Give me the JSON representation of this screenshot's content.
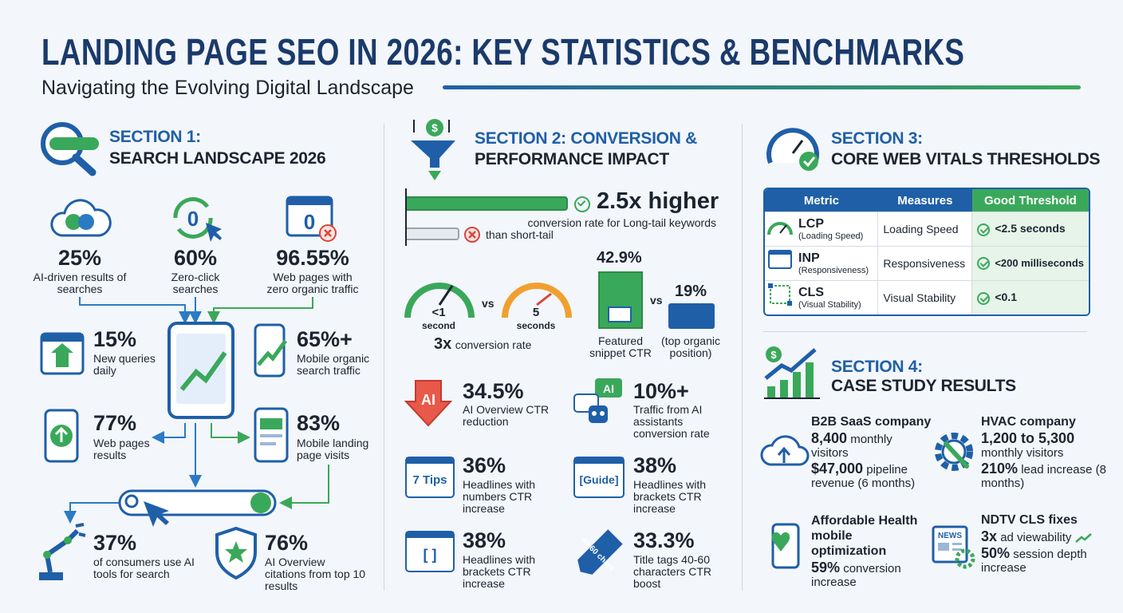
{
  "header": {
    "title": "LANDING PAGE SEO IN 2026: KEY STATISTICS & BENCHMARKS",
    "subtitle": "Navigating the Evolving Digital Landscape"
  },
  "section1": {
    "heading": "SECTION 1:",
    "title": "SEARCH LANDSCAPE 2026",
    "stats": [
      {
        "value": "25%",
        "label": "AI-driven results of searches"
      },
      {
        "value": "60%",
        "label": "Zero-click searches",
        "icon": "0"
      },
      {
        "value": "96.55%",
        "label": "Web pages with zero organic traffic",
        "icon": "0"
      },
      {
        "value": "15%",
        "label": "New queries daily"
      },
      {
        "value": "65%+",
        "label": "Mobile organic search traffic"
      },
      {
        "value": "77%",
        "label": "Web pages results"
      },
      {
        "value": "83%",
        "label": "Mobile landing page visits"
      },
      {
        "value": "37%",
        "label": "of consumers use AI tools for search"
      },
      {
        "value": "76%",
        "label": "AI Overview citations from top 10 results"
      }
    ]
  },
  "section2": {
    "heading": "SECTION 2: CONVERSION &",
    "title": "PERFORMANCE IMPACT",
    "icon": "$",
    "longtail": {
      "value": "2.5x higher",
      "text": "conversion rate for Long-tail keywords",
      "compare": "than short-tail"
    },
    "speed": {
      "fast": "<1",
      "fast_unit": "second",
      "vs": "vs",
      "slow": "5",
      "slow_unit": "seconds",
      "result_value": "3x",
      "result": "conversion rate"
    },
    "snippet": {
      "value1": "42.9%",
      "label1": "Featured snippet CTR",
      "vs": "vs",
      "value2": "19%",
      "label2": "(top organic position)"
    },
    "stats": [
      {
        "value": "34.5%",
        "label": "AI Overview CTR reduction",
        "icon": "AI"
      },
      {
        "value": "10%+",
        "label": "Traffic from AI assistants conversion rate",
        "icon": "AI"
      },
      {
        "value": "36%",
        "label": "Headlines with numbers CTR increase",
        "icon": "7 Tips"
      },
      {
        "value": "38%",
        "label": "Headlines with brackets CTR increase",
        "icon": "[Guide]"
      },
      {
        "value": "38%",
        "label": "Headlines with brackets CTR increase",
        "icon": "[ ]"
      },
      {
        "value": "33.3%",
        "label": "Title tags 40-60 characters CTR boost",
        "icon": "40-60 chars"
      }
    ]
  },
  "section3": {
    "heading": "SECTION 3:",
    "title": "CORE WEB VITALS THRESHOLDS",
    "table": {
      "header": [
        "Metric",
        "Measures",
        "Good Threshold"
      ],
      "rows": [
        {
          "metric": "LCP",
          "detail": "(Loading Speed)",
          "measures": "Loading Speed",
          "threshold": "<2.5 seconds"
        },
        {
          "metric": "INP",
          "detail": "(Responsiveness)",
          "measures": "Responsiveness",
          "threshold": "<200 milliseconds"
        },
        {
          "metric": "CLS",
          "detail": "(Visual Stability)",
          "measures": "Visual Stability",
          "threshold": "<0.1"
        }
      ]
    }
  },
  "section4": {
    "heading": "SECTION 4:",
    "title": "CASE STUDY RESULTS",
    "icon": "$",
    "cases": [
      {
        "name": "B2B SaaS company",
        "lines": [
          {
            "b": "8,400",
            "t": "monthly visitors"
          },
          {
            "b": "$47,000",
            "t": "pipeline revenue (6 months)"
          }
        ]
      },
      {
        "name": "HVAC company",
        "lines": [
          {
            "b": "1,200 to 5,300",
            "t": "monthly visitors"
          },
          {
            "b": "210%",
            "t": "lead increase (8 months)"
          }
        ]
      },
      {
        "name": "Affordable Health mobile optimization",
        "lines": [
          {
            "b": "59%",
            "t": "conversion increase"
          }
        ]
      },
      {
        "name": "NDTV CLS fixes",
        "icon": "NEWS",
        "lines": [
          {
            "b": "3x",
            "t": "ad viewability"
          },
          {
            "b": "50%",
            "t": "session depth increase"
          }
        ]
      }
    ]
  }
}
